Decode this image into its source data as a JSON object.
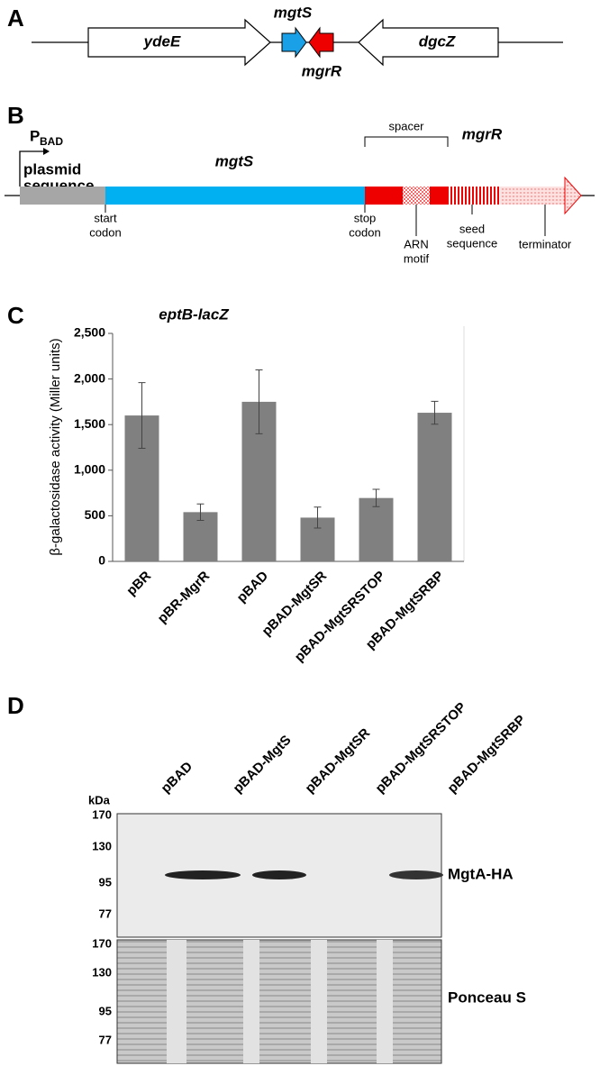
{
  "panel_a": {
    "label": "A",
    "genes": [
      "ydeE",
      "mgtS",
      "mgrR",
      "dgcZ"
    ]
  },
  "panel_b": {
    "label": "B",
    "promoter": "P",
    "promoter_sub": "BAD",
    "plasmid": [
      "plasmid",
      "sequence"
    ],
    "gene": "mgtS",
    "spacer": "spacer",
    "srna": "mgrR",
    "start": [
      "start",
      "codon"
    ],
    "stop": [
      "stop",
      "codon"
    ],
    "motif": [
      "ARN",
      "motif"
    ],
    "seed": [
      "seed",
      "sequence"
    ],
    "terminator": "terminator"
  },
  "chart_data": {
    "type": "bar",
    "panel_label": "C",
    "title": "eptB-lacZ",
    "y_label": "β-galactosidase activity (Miller units)",
    "categories": [
      "pBR",
      "pBR-MgrR",
      "pBAD",
      "pBAD-MgtSR",
      "pBAD-MgtSRSTOP",
      "pBAD-MgtSRBP"
    ],
    "values": [
      1600,
      540,
      1750,
      480,
      695,
      1630
    ],
    "errors": [
      360,
      90,
      350,
      115,
      95,
      125
    ],
    "color": "#808080",
    "ylim": [
      0,
      2500
    ],
    "yticks": [
      0,
      500,
      {
        "value": 1000,
        "label": "1,000"
      },
      {
        "value": 1500,
        "label": "1,500"
      },
      {
        "value": 2000,
        "label": "2,000"
      },
      {
        "value": 2500,
        "label": "2,500"
      }
    ]
  },
  "panel_d": {
    "label": "D",
    "lanes": [
      "pBAD",
      "pBAD-MgtS",
      "pBAD-MgtSR",
      "pBAD-MgtSRSTOP",
      "pBAD-MgtSRBP"
    ],
    "unit": "kDa",
    "markers": [
      170,
      130,
      95,
      77
    ],
    "blots": [
      "MgtA-HA",
      "Ponceau S"
    ]
  }
}
